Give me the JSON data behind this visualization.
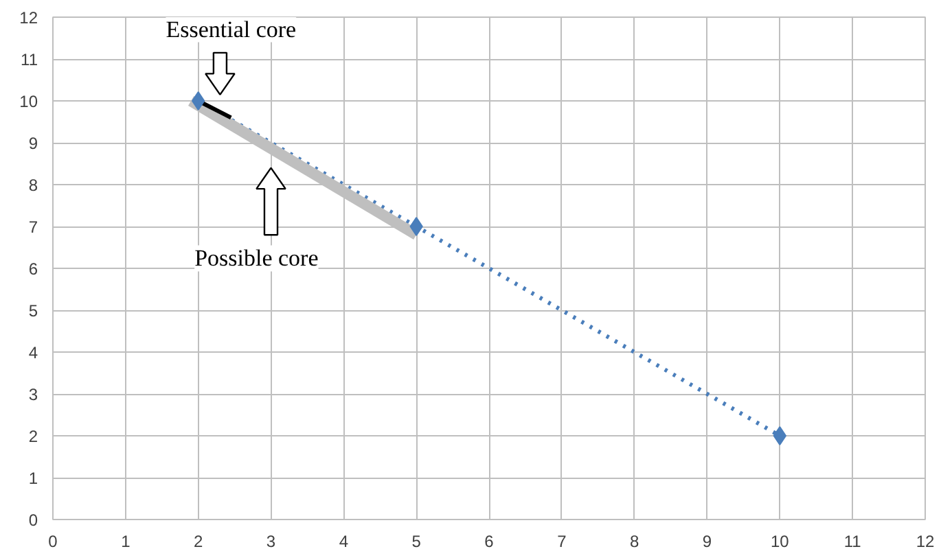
{
  "chart_data": {
    "type": "line",
    "x": [
      2,
      5,
      10
    ],
    "series": [
      {
        "color": "#4a7ebb",
        "values": [
          10,
          7,
          2
        ],
        "marker": "diamond",
        "line_style": "dotted"
      },
      {
        "color": "#bfbfbf",
        "x": [
          1.9,
          5
        ],
        "values": [
          10,
          6.8
        ],
        "marker": "none",
        "line_style": "solid"
      },
      {
        "color": "#000000",
        "x": [
          2,
          2.45
        ],
        "values": [
          10,
          9.6
        ],
        "marker": "none",
        "line_style": "solid"
      }
    ],
    "xlim": [
      0,
      12
    ],
    "ylim": [
      0,
      12
    ],
    "xticks": [
      0,
      1,
      2,
      3,
      4,
      5,
      6,
      7,
      8,
      9,
      10,
      11,
      12
    ],
    "yticks": [
      0,
      1,
      2,
      3,
      4,
      5,
      6,
      7,
      8,
      9,
      10,
      11,
      12
    ],
    "grid": true,
    "annotations": [
      "Essential core",
      "Possible core"
    ]
  }
}
